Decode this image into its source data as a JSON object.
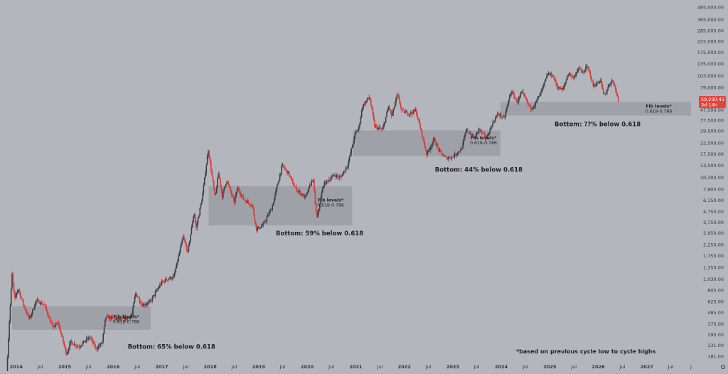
{
  "chart_data": {
    "type": "candlestick",
    "title": "",
    "y_scale": "log",
    "ylim": [
      170,
      520000
    ],
    "xlim": [
      "2013-09-01",
      "2027-11-30"
    ],
    "grid": false,
    "colors": {
      "background": "#b4b6bd",
      "up": "#3a3d42",
      "down": "#d93a35",
      "zone": "#9a9ca3",
      "price_tag": "#e8433a"
    },
    "y_ticks": [
      "181.00",
      "231.00",
      "295.00",
      "375.00",
      "485.00",
      "625.00",
      "805.00",
      "1,030.00",
      "1,350.00",
      "1,750.00",
      "2,250.00",
      "2,950.00",
      "3,750.00",
      "4,750.00",
      "6,150.00",
      "7,900.00",
      "10,300.00",
      "13,500.00",
      "17,500.00",
      "22,500.00",
      "29,500.00",
      "37,500.00",
      "47,500.00",
      "63,000.00",
      "79,000.00",
      "103,000.00",
      "135,000.00",
      "175,000.00",
      "225,000.00",
      "285,000.00",
      "365,000.00",
      "485,000.00"
    ],
    "x_ticks": [
      {
        "label": "2014",
        "date": "2014-01-01",
        "year": true
      },
      {
        "label": "Jul",
        "date": "2014-07-01",
        "year": false
      },
      {
        "label": "2015",
        "date": "2015-01-01",
        "year": true
      },
      {
        "label": "Jul",
        "date": "2015-07-01",
        "year": false
      },
      {
        "label": "2016",
        "date": "2016-01-01",
        "year": true
      },
      {
        "label": "Jul",
        "date": "2016-07-01",
        "year": false
      },
      {
        "label": "2017",
        "date": "2017-01-01",
        "year": true
      },
      {
        "label": "Jul",
        "date": "2017-07-01",
        "year": false
      },
      {
        "label": "2018",
        "date": "2018-01-01",
        "year": true
      },
      {
        "label": "Jul",
        "date": "2018-07-01",
        "year": false
      },
      {
        "label": "2019",
        "date": "2019-01-01",
        "year": true
      },
      {
        "label": "Jul",
        "date": "2019-07-01",
        "year": false
      },
      {
        "label": "2020",
        "date": "2020-01-01",
        "year": true
      },
      {
        "label": "Jul",
        "date": "2020-07-01",
        "year": false
      },
      {
        "label": "2021",
        "date": "2021-01-01",
        "year": true
      },
      {
        "label": "Jul",
        "date": "2021-07-01",
        "year": false
      },
      {
        "label": "2022",
        "date": "2022-01-01",
        "year": true
      },
      {
        "label": "Jul",
        "date": "2022-07-01",
        "year": false
      },
      {
        "label": "2023",
        "date": "2023-01-01",
        "year": true
      },
      {
        "label": "Jul",
        "date": "2023-07-01",
        "year": false
      },
      {
        "label": "2024",
        "date": "2024-01-01",
        "year": true
      },
      {
        "label": "Jul",
        "date": "2024-07-01",
        "year": false
      },
      {
        "label": "2025",
        "date": "2025-01-01",
        "year": true
      },
      {
        "label": "Jul",
        "date": "2025-07-01",
        "year": false
      },
      {
        "label": "2026",
        "date": "2026-01-01",
        "year": true
      },
      {
        "label": "Jul",
        "date": "2026-07-01",
        "year": false
      },
      {
        "label": "2027",
        "date": "2027-01-01",
        "year": true
      },
      {
        "label": "Jul",
        "date": "2027-07-01",
        "year": false
      },
      {
        "label": "J",
        "date": "2027-11-30",
        "year": false
      }
    ],
    "series": [
      {
        "price_path": [
          [
            "2013-10-20",
            125
          ],
          [
            "2013-11-10",
            400
          ],
          [
            "2013-12-01",
            1150
          ],
          [
            "2013-12-20",
            650
          ],
          [
            "2014-01-15",
            850
          ],
          [
            "2014-02-20",
            600
          ],
          [
            "2014-04-10",
            420
          ],
          [
            "2014-06-01",
            640
          ],
          [
            "2014-08-01",
            580
          ],
          [
            "2014-10-01",
            350
          ],
          [
            "2014-11-15",
            380
          ],
          [
            "2015-01-14",
            190
          ],
          [
            "2015-02-15",
            250
          ],
          [
            "2015-04-15",
            225
          ],
          [
            "2015-07-10",
            280
          ],
          [
            "2015-08-25",
            215
          ],
          [
            "2015-10-10",
            245
          ],
          [
            "2015-11-05",
            440
          ],
          [
            "2015-12-20",
            430
          ],
          [
            "2016-03-01",
            410
          ],
          [
            "2016-05-20",
            450
          ],
          [
            "2016-06-18",
            760
          ],
          [
            "2016-08-05",
            580
          ],
          [
            "2016-10-01",
            610
          ],
          [
            "2016-12-31",
            960
          ],
          [
            "2017-02-15",
            1050
          ],
          [
            "2017-04-01",
            1080
          ],
          [
            "2017-06-10",
            2700
          ],
          [
            "2017-07-16",
            1900
          ],
          [
            "2017-09-01",
            4800
          ],
          [
            "2017-09-15",
            3200
          ],
          [
            "2017-11-01",
            6500
          ],
          [
            "2017-12-17",
            19500
          ],
          [
            "2018-02-06",
            6500
          ],
          [
            "2018-03-05",
            11500
          ],
          [
            "2018-04-01",
            6800
          ],
          [
            "2018-05-05",
            9800
          ],
          [
            "2018-06-30",
            5900
          ],
          [
            "2018-07-25",
            8200
          ],
          [
            "2018-09-10",
            6300
          ],
          [
            "2018-11-14",
            5500
          ],
          [
            "2018-12-15",
            3200
          ],
          [
            "2019-02-01",
            3500
          ],
          [
            "2019-04-10",
            5200
          ],
          [
            "2019-06-26",
            13500
          ],
          [
            "2019-08-10",
            11500
          ],
          [
            "2019-10-01",
            8200
          ],
          [
            "2019-12-18",
            6500
          ],
          [
            "2020-02-13",
            10300
          ],
          [
            "2020-03-13",
            4000
          ],
          [
            "2020-05-01",
            8800
          ],
          [
            "2020-07-25",
            11000
          ],
          [
            "2020-09-05",
            10200
          ],
          [
            "2020-11-01",
            13800
          ],
          [
            "2020-12-31",
            29000
          ],
          [
            "2021-01-22",
            31000
          ],
          [
            "2021-02-20",
            52000
          ],
          [
            "2021-04-14",
            64000
          ],
          [
            "2021-05-23",
            33000
          ],
          [
            "2021-07-20",
            30000
          ],
          [
            "2021-09-06",
            52000
          ],
          [
            "2021-09-28",
            41000
          ],
          [
            "2021-11-10",
            68000
          ],
          [
            "2021-12-15",
            46000
          ],
          [
            "2022-02-10",
            44000
          ],
          [
            "2022-03-28",
            47000
          ],
          [
            "2022-05-12",
            28000
          ],
          [
            "2022-06-18",
            17600
          ],
          [
            "2022-08-14",
            24500
          ],
          [
            "2022-09-20",
            18800
          ],
          [
            "2022-11-09",
            16000
          ],
          [
            "2022-12-31",
            16500
          ],
          [
            "2023-03-10",
            20000
          ],
          [
            "2023-04-14",
            30500
          ],
          [
            "2023-06-15",
            25000
          ],
          [
            "2023-07-15",
            31000
          ],
          [
            "2023-09-11",
            25000
          ],
          [
            "2023-10-24",
            34500
          ],
          [
            "2023-12-08",
            44000
          ],
          [
            "2024-01-23",
            39000
          ],
          [
            "2024-03-14",
            73000
          ],
          [
            "2024-05-01",
            57000
          ],
          [
            "2024-06-05",
            71000
          ],
          [
            "2024-08-05",
            50000
          ],
          [
            "2024-09-06",
            53000
          ],
          [
            "2024-10-29",
            72000
          ],
          [
            "2024-12-17",
            108000
          ],
          [
            "2025-01-22",
            104000
          ],
          [
            "2025-02-27",
            80000
          ],
          [
            "2025-04-08",
            74500
          ],
          [
            "2025-05-22",
            111000
          ],
          [
            "2025-06-22",
            98000
          ],
          [
            "2025-08-14",
            124000
          ],
          [
            "2025-09-01",
            108000
          ],
          [
            "2025-10-06",
            126000
          ],
          [
            "2025-10-30",
            110000
          ],
          [
            "2025-11-21",
            82000
          ],
          [
            "2026-01-01",
            88000
          ],
          [
            "2026-01-18",
            95000
          ],
          [
            "2026-02-05",
            70000
          ],
          [
            "2026-02-25",
            66000
          ],
          [
            "2026-03-20",
            84000
          ],
          [
            "2026-04-15",
            92000
          ],
          [
            "2026-05-05",
            78000
          ],
          [
            "2026-05-31",
            59000
          ]
        ]
      }
    ],
    "zones": [
      {
        "start": "2013-12-01",
        "end": "2016-10-10",
        "low": 330,
        "high": 560,
        "label": "Fib levels*\n0.618-0.786",
        "bottom_note": "Bottom: 65% below 0.618"
      },
      {
        "start": "2017-12-20",
        "end": "2020-12-05",
        "low": 3500,
        "high": 8500,
        "label": "Fib levels*\n0.618-0.786",
        "bottom_note": "Bottom: 59% below 0.618"
      },
      {
        "start": "2020-12-10",
        "end": "2023-12-25",
        "low": 16800,
        "high": 30000,
        "label": "Fib levels*\n0.618-0.786",
        "bottom_note": "Bottom: 44% below 0.618"
      },
      {
        "start": "2023-12-25",
        "end": "2027-11-30",
        "low": 42000,
        "high": 57000,
        "label": "Fib levels*\n0.618-0.786",
        "bottom_note": "Bottom: ??% below 0.618"
      }
    ],
    "annotations": [
      {
        "text": "Bottom: 65% below 0.618",
        "date": "2016-04-20",
        "value": 215
      },
      {
        "text": "Bottom: 59% below 0.618",
        "date": "2019-05-10",
        "value": 2800
      },
      {
        "text": "Bottom: 44% below 0.618",
        "date": "2022-08-20",
        "value": 11800
      },
      {
        "text": "Bottom: ??% below 0.618",
        "date": "2025-02-05",
        "value": 33000
      }
    ],
    "zone_labels": [
      {
        "lines": [
          "Fib levels*",
          "0.618-0.786"
        ],
        "date": "2016-04-08",
        "value": 430
      },
      {
        "lines": [
          "Fib levels*",
          "0.618-0.786"
        ],
        "date": "2020-06-25",
        "value": 6000
      },
      {
        "lines": [
          "Fib levels*",
          "0.618-0.786"
        ],
        "date": "2023-08-20",
        "value": 24500
      },
      {
        "lines": [
          "Fib levels*",
          "0.618-0.786"
        ],
        "date": "2027-04-01",
        "value": 50000
      }
    ],
    "footnote": "*based on previous cycle low to cycle highs",
    "current_price": {
      "price": "59,230.41",
      "countdown": "3d 14h",
      "value": 59230
    }
  }
}
